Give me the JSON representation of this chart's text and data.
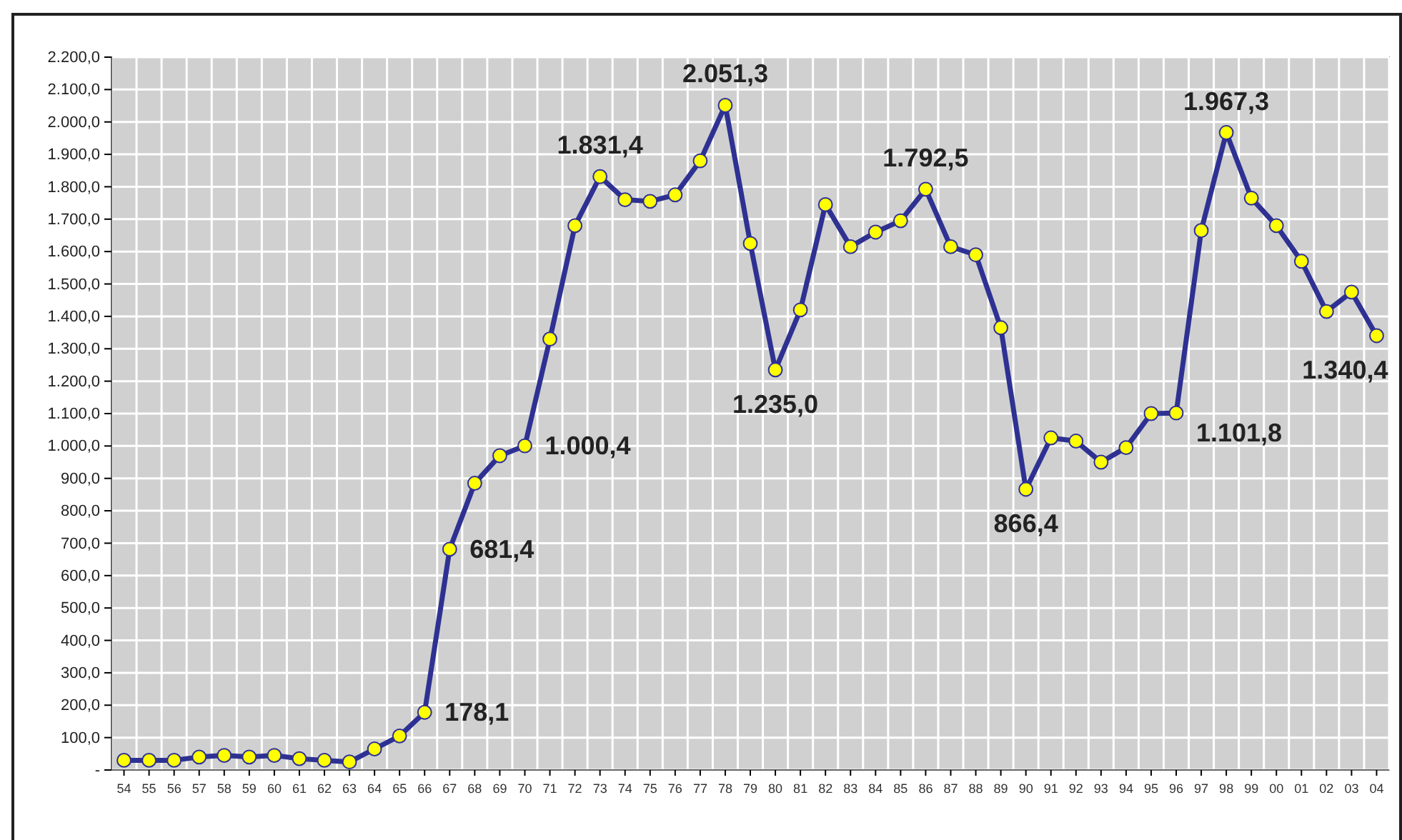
{
  "chart_data": {
    "type": "line",
    "categories": [
      "54",
      "55",
      "56",
      "57",
      "58",
      "59",
      "60",
      "61",
      "62",
      "63",
      "64",
      "65",
      "66",
      "67",
      "68",
      "69",
      "70",
      "71",
      "72",
      "73",
      "74",
      "75",
      "76",
      "77",
      "78",
      "79",
      "80",
      "81",
      "82",
      "83",
      "84",
      "85",
      "86",
      "87",
      "88",
      "89",
      "90",
      "91",
      "92",
      "93",
      "94",
      "95",
      "96",
      "97",
      "98",
      "99",
      "00",
      "01",
      "02",
      "03",
      "04"
    ],
    "series": [
      {
        "color": "#2e3192",
        "values": [
          30,
          30,
          30,
          40,
          45,
          40,
          45,
          35,
          30,
          25,
          65,
          105,
          178.1,
          681.4,
          885,
          970,
          1000.4,
          1330,
          1680,
          1831.4,
          1760,
          1755,
          1775,
          1880,
          2051.3,
          1625,
          1235.0,
          1420,
          1745,
          1615,
          1660,
          1695,
          1792.5,
          1615,
          1590,
          1365,
          866.4,
          1025,
          1015,
          950,
          995,
          1100,
          1101.8,
          1665,
          1967.3,
          1765,
          1680,
          1570,
          1415,
          1475,
          1340.4
        ],
        "value_labels": [
          null,
          null,
          null,
          null,
          null,
          null,
          null,
          null,
          null,
          null,
          null,
          null,
          "178,1",
          "681,4",
          null,
          null,
          "1.000,4",
          null,
          null,
          "1.831,4",
          null,
          null,
          null,
          null,
          "2.051,3",
          null,
          "1.235,0",
          null,
          null,
          null,
          null,
          null,
          "1.792,5",
          null,
          null,
          null,
          "866,4",
          null,
          null,
          null,
          null,
          null,
          "1.101,8",
          null,
          "1.967,3",
          null,
          null,
          null,
          null,
          null,
          "1.340,4"
        ]
      }
    ],
    "ylim": [
      0,
      2200
    ],
    "yticks": [
      {
        "value": 0,
        "label": "-"
      },
      {
        "value": 100,
        "label": "100,0"
      },
      {
        "value": 200,
        "label": "200,0"
      },
      {
        "value": 300,
        "label": "300,0"
      },
      {
        "value": 400,
        "label": "400,0"
      },
      {
        "value": 500,
        "label": "500,0"
      },
      {
        "value": 600,
        "label": "600,0"
      },
      {
        "value": 700,
        "label": "700,0"
      },
      {
        "value": 800,
        "label": "800,0"
      },
      {
        "value": 900,
        "label": "900,0"
      },
      {
        "value": 1000,
        "label": "1.000,0"
      },
      {
        "value": 1100,
        "label": "1.100,0"
      },
      {
        "value": 1200,
        "label": "1.200,0"
      },
      {
        "value": 1300,
        "label": "1.300,0"
      },
      {
        "value": 1400,
        "label": "1.400,0"
      },
      {
        "value": 1500,
        "label": "1.500,0"
      },
      {
        "value": 1600,
        "label": "1.600,0"
      },
      {
        "value": 1700,
        "label": "1.700,0"
      },
      {
        "value": 1800,
        "label": "1.800,0"
      },
      {
        "value": 1900,
        "label": "1.900,0"
      },
      {
        "value": 2000,
        "label": "2.000,0"
      },
      {
        "value": 2100,
        "label": "2.100,0"
      },
      {
        "value": 2200,
        "label": "2.200,0"
      }
    ],
    "grid": true,
    "marker": "circle",
    "line_style": "solid"
  }
}
